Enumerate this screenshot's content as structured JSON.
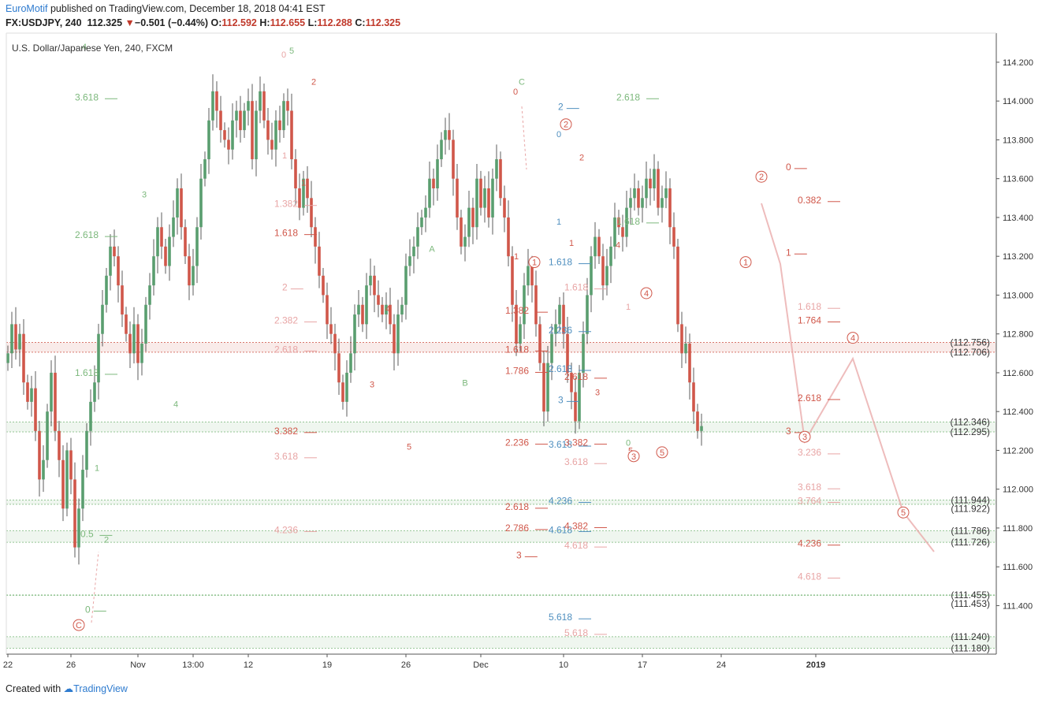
{
  "header": {
    "author": "EuroMotif",
    "published": "published on TradingView.com, December 18, 2018 04:41 EST",
    "symbol": "FX:USDJPY, 240",
    "last": "112.325",
    "change": "−0.501 (−0.44%)",
    "o_label": "O:",
    "o": "112.592",
    "h_label": "H:",
    "h": "112.655",
    "l_label": "L:",
    "l": "112.288",
    "c_label": "C:",
    "c": "112.325"
  },
  "footer": {
    "created": "Created with",
    "brand": "TradingView"
  },
  "colors": {
    "up": "#5a9e6f",
    "down": "#d0574a",
    "green": "#7cb87c",
    "red": "#d0574a",
    "blue": "#4f8fbf",
    "pink": "#e8a5a5"
  },
  "chart_data": {
    "type": "candlestick",
    "title": "U.S. Dollar/Japanese Yen, 240, FXCM",
    "ylim": [
      111.15,
      114.35
    ],
    "y_ticks": [
      "114.200",
      "114.000",
      "113.800",
      "113.600",
      "113.400",
      "113.200",
      "113.000",
      "112.800",
      "112.600",
      "112.400",
      "112.200",
      "112.000",
      "111.800",
      "111.600",
      "111.400"
    ],
    "x_ticks": [
      {
        "label": "22",
        "i": 0
      },
      {
        "label": "26",
        "i": 16
      },
      {
        "label": "Nov",
        "i": 33
      },
      {
        "label": "13:00",
        "i": 47
      },
      {
        "label": "12",
        "i": 61
      },
      {
        "label": "19",
        "i": 81
      },
      {
        "label": "26",
        "i": 101
      },
      {
        "label": "Dec",
        "i": 120
      },
      {
        "label": "10",
        "i": 141
      },
      {
        "label": "17",
        "i": 161
      },
      {
        "label": "24",
        "i": 181
      },
      {
        "label": "2019",
        "i": 205
      }
    ],
    "price_tags": [
      {
        "value": 112.756,
        "label": "(112.756)",
        "color": "#d0574a"
      },
      {
        "value": 112.706,
        "label": "(112.706)",
        "color": "#d0574a"
      },
      {
        "value": 112.346,
        "label": "(112.346)",
        "color": "#7cb87c"
      },
      {
        "value": 112.295,
        "label": "(112.295)",
        "color": "#7cb87c"
      },
      {
        "value": 111.944,
        "label": "(111.944)",
        "color": "#7cb87c"
      },
      {
        "value": 111.922,
        "label": "(111.922)",
        "color": "#7cb87c"
      },
      {
        "value": 111.786,
        "label": "(111.786)",
        "color": "#7cb87c"
      },
      {
        "value": 111.726,
        "label": "(111.726)",
        "color": "#7cb87c"
      },
      {
        "value": 111.455,
        "label": "(111.455)",
        "color": "#7cb87c"
      },
      {
        "value": 111.453,
        "label": "(111.453)",
        "color": "#7cb87c"
      },
      {
        "value": 111.24,
        "label": "(111.240)",
        "color": "#7cb87c"
      },
      {
        "value": 111.18,
        "label": "(111.180)",
        "color": "#7cb87c"
      }
    ],
    "zones": [
      {
        "from": 112.706,
        "to": 112.756,
        "color": "#d0574a"
      },
      {
        "from": 112.295,
        "to": 112.346,
        "color": "#7cb87c"
      },
      {
        "from": 111.922,
        "to": 111.944,
        "color": "#7cb87c"
      },
      {
        "from": 111.726,
        "to": 111.786,
        "color": "#7cb87c"
      },
      {
        "from": 111.453,
        "to": 111.455,
        "color": "#7cb87c"
      },
      {
        "from": 111.18,
        "to": 111.24,
        "color": "#7cb87c"
      }
    ],
    "closes": [
      112.7,
      112.85,
      112.72,
      112.8,
      112.55,
      112.45,
      112.52,
      112.3,
      112.05,
      112.15,
      112.4,
      112.6,
      112.3,
      112.15,
      111.9,
      112.2,
      112.05,
      111.7,
      111.9,
      112.1,
      112.3,
      112.45,
      112.55,
      112.8,
      112.95,
      113.1,
      113.25,
      113.2,
      113.05,
      112.9,
      112.8,
      112.7,
      112.85,
      112.65,
      112.75,
      112.95,
      113.05,
      113.2,
      113.35,
      113.25,
      113.15,
      113.3,
      113.4,
      113.55,
      113.35,
      113.2,
      113.05,
      113.15,
      113.35,
      113.6,
      113.7,
      113.9,
      114.05,
      113.95,
      113.85,
      113.8,
      113.75,
      113.9,
      113.95,
      113.85,
      113.95,
      114.0,
      113.7,
      113.95,
      114.05,
      113.9,
      113.8,
      113.75,
      113.9,
      113.85,
      114.0,
      113.95,
      113.7,
      113.55,
      113.45,
      113.6,
      113.5,
      113.35,
      113.25,
      113.1,
      113.0,
      112.85,
      112.8,
      112.7,
      112.55,
      112.45,
      112.6,
      112.7,
      112.9,
      112.95,
      112.85,
      113.05,
      113.1,
      113.0,
      112.95,
      112.9,
      112.95,
      112.85,
      112.7,
      112.9,
      112.95,
      113.15,
      113.2,
      113.25,
      113.35,
      113.4,
      113.45,
      113.6,
      113.55,
      113.7,
      113.8,
      113.85,
      113.8,
      113.6,
      113.4,
      113.25,
      113.3,
      113.45,
      113.35,
      113.6,
      113.45,
      113.55,
      113.4,
      113.6,
      113.7,
      113.5,
      113.4,
      113.2,
      112.95,
      112.75,
      112.85,
      113.05,
      113.15,
      113.05,
      112.85,
      112.65,
      112.4,
      112.65,
      112.8,
      112.85,
      112.95,
      112.8,
      112.6,
      112.5,
      112.35,
      112.6,
      112.8,
      113.0,
      113.2,
      113.3,
      113.2,
      113.05,
      113.15,
      113.25,
      113.4,
      113.35,
      113.3,
      113.45,
      113.5,
      113.55,
      113.45,
      113.5,
      113.6,
      113.55,
      113.65,
      113.45,
      113.5,
      113.55,
      113.35,
      113.25,
      112.85,
      112.7,
      112.75,
      112.55,
      112.4,
      112.3,
      112.325
    ],
    "fib_labels": [
      {
        "t": "3.618",
        "v": 114.02,
        "x": 95,
        "c": "green"
      },
      {
        "t": "2.618",
        "v": 113.31,
        "x": 95,
        "c": "green"
      },
      {
        "t": "1.618",
        "v": 112.6,
        "x": 95,
        "c": "green"
      },
      {
        "t": "0.5",
        "v": 111.77,
        "x": 102,
        "c": "green"
      },
      {
        "t": "0",
        "v": 111.38,
        "x": 108,
        "c": "green"
      },
      {
        "t": "1.382",
        "v": 113.47,
        "x": 348,
        "c": "pink"
      },
      {
        "t": "1.618",
        "v": 113.32,
        "x": 348,
        "c": "red"
      },
      {
        "t": "2",
        "v": 113.04,
        "x": 358,
        "c": "pink"
      },
      {
        "t": "2.382",
        "v": 112.87,
        "x": 348,
        "c": "pink"
      },
      {
        "t": "2.618",
        "v": 112.72,
        "x": 348,
        "c": "pink"
      },
      {
        "t": "3.382",
        "v": 112.3,
        "x": 348,
        "c": "red"
      },
      {
        "t": "3.618",
        "v": 112.17,
        "x": 348,
        "c": "pink"
      },
      {
        "t": "4.236",
        "v": 111.79,
        "x": 348,
        "c": "pink"
      },
      {
        "t": "1.382",
        "v": 112.92,
        "x": 641,
        "c": "red"
      },
      {
        "t": "1.618",
        "v": 112.72,
        "x": 641,
        "c": "red"
      },
      {
        "t": "1.786",
        "v": 112.61,
        "x": 641,
        "c": "red"
      },
      {
        "t": "2.236",
        "v": 112.24,
        "x": 641,
        "c": "red"
      },
      {
        "t": "2.618",
        "v": 111.91,
        "x": 641,
        "c": "red"
      },
      {
        "t": "2.786",
        "v": 111.8,
        "x": 641,
        "c": "red"
      },
      {
        "t": "3",
        "v": 111.66,
        "x": 655,
        "c": "red"
      },
      {
        "t": "1.618",
        "v": 113.17,
        "x": 696,
        "c": "blue"
      },
      {
        "t": "2",
        "v": 113.97,
        "x": 708,
        "c": "blue"
      },
      {
        "t": "2.236",
        "v": 112.82,
        "x": 696,
        "c": "blue"
      },
      {
        "t": "2.618",
        "v": 112.62,
        "x": 696,
        "c": "blue"
      },
      {
        "t": "3",
        "v": 112.46,
        "x": 708,
        "c": "blue"
      },
      {
        "t": "3.618",
        "v": 112.23,
        "x": 696,
        "c": "blue"
      },
      {
        "t": "4.236",
        "v": 111.94,
        "x": 696,
        "c": "blue"
      },
      {
        "t": "4.618",
        "v": 111.79,
        "x": 696,
        "c": "blue"
      },
      {
        "t": "5.618",
        "v": 111.34,
        "x": 696,
        "c": "blue"
      },
      {
        "t": "1.618",
        "v": 113.04,
        "x": 716,
        "c": "pink"
      },
      {
        "t": "2.618",
        "v": 112.58,
        "x": 716,
        "c": "red"
      },
      {
        "t": "3.382",
        "v": 112.24,
        "x": 716,
        "c": "red"
      },
      {
        "t": "3.618",
        "v": 112.14,
        "x": 716,
        "c": "pink"
      },
      {
        "t": "4.382",
        "v": 111.81,
        "x": 716,
        "c": "red"
      },
      {
        "t": "4.618",
        "v": 111.71,
        "x": 716,
        "c": "pink"
      },
      {
        "t": "5.618",
        "v": 111.26,
        "x": 716,
        "c": "pink"
      },
      {
        "t": "2.618",
        "v": 114.02,
        "x": 782,
        "c": "green"
      },
      {
        "t": "1.618",
        "v": 113.38,
        "x": 782,
        "c": "green"
      },
      {
        "t": "0",
        "v": 113.66,
        "x": 997,
        "c": "red"
      },
      {
        "t": "0.382",
        "v": 113.49,
        "x": 1012,
        "c": "red"
      },
      {
        "t": "1",
        "v": 113.22,
        "x": 997,
        "c": "red"
      },
      {
        "t": "1.618",
        "v": 112.94,
        "x": 1012,
        "c": "pink"
      },
      {
        "t": "1.764",
        "v": 112.87,
        "x": 1012,
        "c": "red"
      },
      {
        "t": "2.618",
        "v": 112.47,
        "x": 1012,
        "c": "red"
      },
      {
        "t": "3",
        "v": 112.3,
        "x": 997,
        "c": "red"
      },
      {
        "t": "3.236",
        "v": 112.19,
        "x": 1012,
        "c": "pink"
      },
      {
        "t": "3.618",
        "v": 112.01,
        "x": 1012,
        "c": "pink"
      },
      {
        "t": "3.764",
        "v": 111.94,
        "x": 1012,
        "c": "pink"
      },
      {
        "t": "4.236",
        "v": 111.72,
        "x": 1012,
        "c": "red"
      },
      {
        "t": "4.618",
        "v": 111.55,
        "x": 1012,
        "c": "pink"
      }
    ],
    "wave_labels": [
      {
        "t": "4",
        "v": 114.28,
        "x": 107,
        "c": "green"
      },
      {
        "t": "3",
        "v": 113.52,
        "x": 183,
        "c": "green"
      },
      {
        "t": "4",
        "v": 112.44,
        "x": 223,
        "c": "green"
      },
      {
        "t": "1",
        "v": 112.11,
        "x": 123,
        "c": "green"
      },
      {
        "t": "2",
        "v": 111.74,
        "x": 135,
        "c": "green"
      },
      {
        "t": "0",
        "v": 114.24,
        "x": 360,
        "c": "pink"
      },
      {
        "t": "5",
        "v": 114.26,
        "x": 370,
        "c": "green"
      },
      {
        "t": "2",
        "v": 114.1,
        "x": 398,
        "c": "red"
      },
      {
        "t": "1",
        "v": 113.72,
        "x": 361,
        "c": "pink"
      },
      {
        "t": "1",
        "v": 113.58,
        "x": 385,
        "c": "red"
      },
      {
        "t": "4",
        "v": 112.93,
        "x": 492,
        "c": "red"
      },
      {
        "t": "3",
        "v": 112.54,
        "x": 472,
        "c": "red"
      },
      {
        "t": "5",
        "v": 112.22,
        "x": 519,
        "c": "red"
      },
      {
        "t": "A",
        "v": 113.24,
        "x": 548,
        "c": "green"
      },
      {
        "t": "B",
        "v": 112.55,
        "x": 590,
        "c": "green"
      },
      {
        "t": "C",
        "v": 114.1,
        "x": 662,
        "c": "green"
      },
      {
        "t": "0",
        "v": 114.05,
        "x": 654,
        "c": "red"
      },
      {
        "t": "1",
        "v": 113.2,
        "x": 655,
        "c": "red"
      },
      {
        "t": "0",
        "v": 113.83,
        "x": 709,
        "c": "blue"
      },
      {
        "t": "1",
        "v": 113.38,
        "x": 709,
        "c": "blue"
      },
      {
        "t": "2",
        "v": 113.71,
        "x": 738,
        "c": "red"
      },
      {
        "t": "1",
        "v": 113.27,
        "x": 725,
        "c": "red"
      },
      {
        "t": "3",
        "v": 112.5,
        "x": 758,
        "c": "red"
      },
      {
        "t": "4",
        "v": 113.26,
        "x": 784,
        "c": "red"
      },
      {
        "t": "1",
        "v": 112.94,
        "x": 797,
        "c": "pink"
      },
      {
        "t": "0",
        "v": 112.24,
        "x": 797,
        "c": "green"
      },
      {
        "t": "5",
        "v": 112.2,
        "x": 800,
        "c": "red"
      }
    ],
    "circle_labels": [
      {
        "t": "C",
        "v": 111.3,
        "x": 100
      },
      {
        "t": "2",
        "v": 113.88,
        "x": 718
      },
      {
        "t": "1",
        "v": 113.17,
        "x": 678
      },
      {
        "t": "4",
        "v": 113.01,
        "x": 820
      },
      {
        "t": "3",
        "v": 112.17,
        "x": 804
      },
      {
        "t": "5",
        "v": 112.19,
        "x": 840
      },
      {
        "t": "2",
        "v": 113.61,
        "x": 966
      },
      {
        "t": "1",
        "v": 113.17,
        "x": 946
      },
      {
        "t": "4",
        "v": 112.78,
        "x": 1082
      },
      {
        "t": "3",
        "v": 112.27,
        "x": 1021
      },
      {
        "t": "5",
        "v": 111.88,
        "x": 1146
      }
    ]
  }
}
